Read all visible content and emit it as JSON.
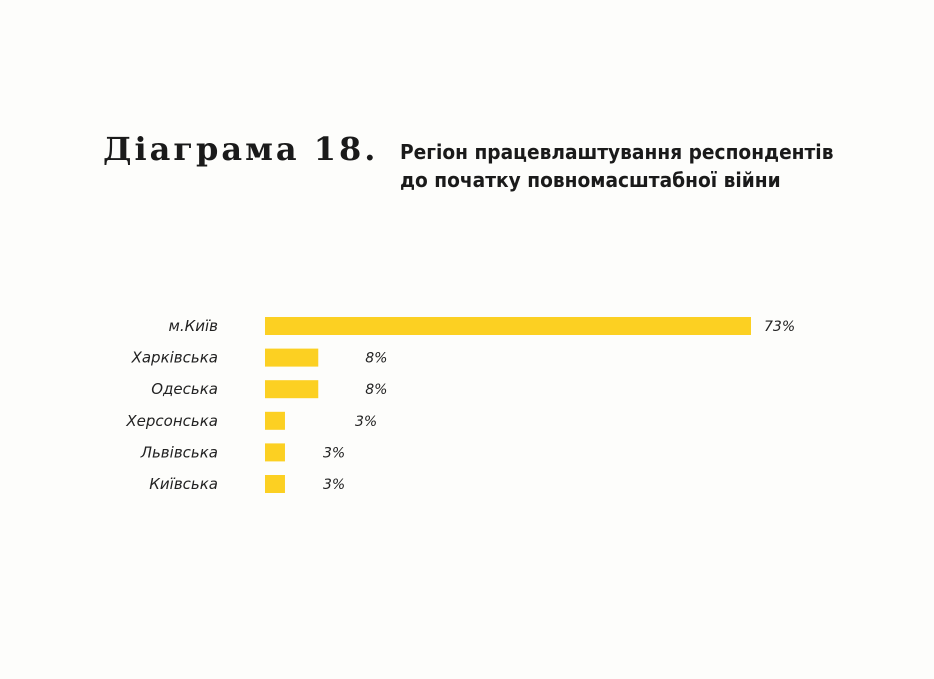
{
  "heading": {
    "label": "Діаграма 18.",
    "title_line1": "Регіон працевлаштування респондентів",
    "title_line2": "до початку повномасштабної війни"
  },
  "colors": {
    "bar": "#fcd022",
    "text": "#1a1a1a",
    "background": "#fdfdfb"
  },
  "chart_data": {
    "type": "bar",
    "orientation": "horizontal",
    "title": "Регіон працевлаштування респондентів до початку повномасштабної війни",
    "categories": [
      "м.Київ",
      "Харківська",
      "Одеська",
      "Херсонська",
      "Львівська",
      "Київська"
    ],
    "values": [
      73,
      8,
      8,
      3,
      3,
      3
    ],
    "value_labels": [
      "73%",
      "8%",
      "8%",
      "3%",
      "3%",
      "3%"
    ],
    "unit": "%",
    "xlim": [
      0,
      73
    ],
    "grid": false,
    "legend": "none"
  }
}
